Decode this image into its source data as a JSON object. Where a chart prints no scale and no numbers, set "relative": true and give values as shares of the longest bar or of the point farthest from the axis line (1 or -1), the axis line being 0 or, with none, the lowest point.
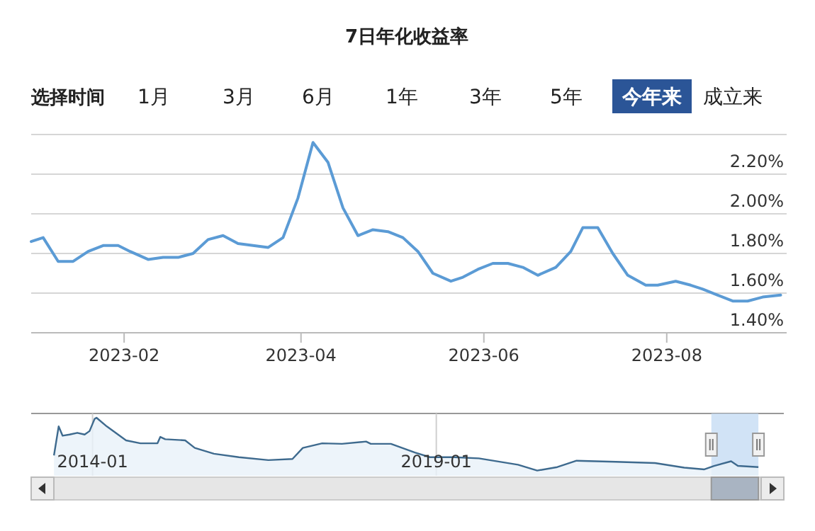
{
  "chart_data": [
    {
      "type": "line",
      "title": "7日年化收益率",
      "annotations": [
        "选择时间",
        "1月",
        "3月",
        "6月",
        "1年",
        "3年",
        "5年",
        "今年来",
        "成立来"
      ],
      "x": [
        "2023-01-01",
        "2023-01-05",
        "2023-01-10",
        "2023-01-15",
        "2023-01-20",
        "2023-01-25",
        "2023-01-30",
        "2023-02-03",
        "2023-02-09",
        "2023-02-14",
        "2023-02-19",
        "2023-02-24",
        "2023-03-01",
        "2023-03-06",
        "2023-03-11",
        "2023-03-16",
        "2023-03-21",
        "2023-03-26",
        "2023-03-31",
        "2023-04-05",
        "2023-04-10",
        "2023-04-15",
        "2023-04-20",
        "2023-04-25",
        "2023-04-30",
        "2023-05-05",
        "2023-05-10",
        "2023-05-15",
        "2023-05-21",
        "2023-05-25",
        "2023-05-30",
        "2023-06-04",
        "2023-06-09",
        "2023-06-14",
        "2023-06-19",
        "2023-06-25",
        "2023-06-30",
        "2023-07-04",
        "2023-07-09",
        "2023-07-14",
        "2023-07-19",
        "2023-07-25",
        "2023-07-29",
        "2023-08-04",
        "2023-08-09",
        "2023-08-13",
        "2023-08-18",
        "2023-08-23",
        "2023-08-28",
        "2023-09-02",
        "2023-09-08"
      ],
      "series": [
        {
          "color": "#5b9bd5",
          "values": [
            1.86,
            1.88,
            1.76,
            1.76,
            1.81,
            1.84,
            1.84,
            1.81,
            1.77,
            1.78,
            1.78,
            1.8,
            1.87,
            1.89,
            1.85,
            1.84,
            1.83,
            1.88,
            2.08,
            2.36,
            2.26,
            2.03,
            1.89,
            1.92,
            1.91,
            1.88,
            1.81,
            1.7,
            1.66,
            1.68,
            1.72,
            1.75,
            1.75,
            1.73,
            1.69,
            1.73,
            1.81,
            1.93,
            1.93,
            1.8,
            1.69,
            1.64,
            1.64,
            1.66,
            1.64,
            1.62,
            1.59,
            1.56,
            1.56,
            1.58,
            1.59
          ]
        }
      ],
      "xlim": [
        "2023-01-01",
        "2023-09-10"
      ],
      "xticks": [
        {
          "value": "2023-02-01",
          "label": "2023-02"
        },
        {
          "value": "2023-04-01",
          "label": "2023-04"
        },
        {
          "value": "2023-06-01",
          "label": "2023-06"
        },
        {
          "value": "2023-08-01",
          "label": "2023-08"
        }
      ],
      "ylim": [
        1.4,
        2.4
      ],
      "yticks": [
        {
          "value": 1.4,
          "label": "1.40%"
        },
        {
          "value": 1.6,
          "label": "1.60%"
        },
        {
          "value": 1.8,
          "label": "1.80%"
        },
        {
          "value": 2.0,
          "label": "2.00%"
        },
        {
          "value": 2.2,
          "label": "2.20%"
        },
        {
          "value": 2.4,
          "label": null
        }
      ],
      "grid": "y"
    },
    {
      "type": "area",
      "relative": true,
      "tick_labels": "x",
      "grid": "x",
      "x": [
        "2013-06-10",
        "2013-07-05",
        "2013-07-26",
        "2013-09-01",
        "2013-10-12",
        "2013-11-20",
        "2013-12-16",
        "2014-01-12",
        "2014-01-22",
        "2014-03-18",
        "2014-06-28",
        "2014-09-12",
        "2014-12-12",
        "2014-12-27",
        "2015-01-22",
        "2015-05-08",
        "2015-06-28",
        "2015-10-08",
        "2016-02-17",
        "2016-07-23",
        "2016-11-28",
        "2017-01-22",
        "2017-05-05",
        "2017-08-18",
        "2017-12-24",
        "2018-01-18",
        "2018-05-05",
        "2018-09-09",
        "2018-11-28",
        "2019-04-05",
        "2019-08-15",
        "2020-03-10",
        "2020-06-20",
        "2020-10-05",
        "2021-01-15",
        "2021-08-10",
        "2022-03-08",
        "2022-08-10",
        "2022-11-25",
        "2023-01-15",
        "2023-04-16",
        "2023-05-22",
        "2023-09-08"
      ],
      "series": [
        {
          "color": "#3e6a8e",
          "values": [
            0.35,
            0.85,
            0.69,
            0.71,
            0.74,
            0.71,
            0.77,
            0.98,
            1.0,
            0.85,
            0.61,
            0.56,
            0.56,
            0.67,
            0.63,
            0.61,
            0.48,
            0.38,
            0.32,
            0.27,
            0.29,
            0.48,
            0.56,
            0.55,
            0.59,
            0.55,
            0.55,
            0.4,
            0.32,
            0.32,
            0.3,
            0.19,
            0.09,
            0.15,
            0.26,
            0.24,
            0.22,
            0.14,
            0.11,
            0.17,
            0.25,
            0.17,
            0.15
          ]
        }
      ],
      "xlim": [
        "2013-02-09",
        "2024-01-21"
      ],
      "xticks": [
        {
          "value": "2014-01-01",
          "label": "2014-01"
        },
        {
          "value": "2019-01-01",
          "label": "2019-01"
        }
      ],
      "bands": [
        {
          "axis": "x",
          "from": "2023-01-01",
          "to": "2023-09-08",
          "color": "#c6dcf4"
        }
      ]
    }
  ]
}
